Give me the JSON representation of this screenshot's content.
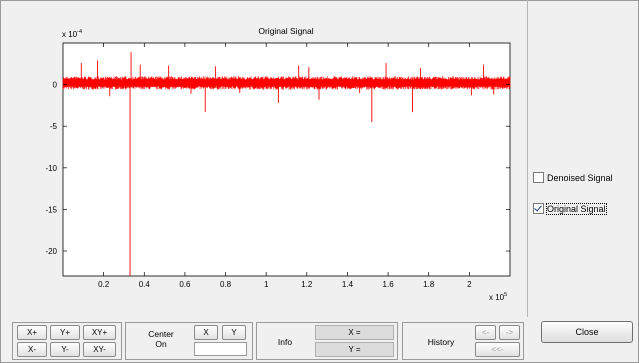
{
  "plot": {
    "title": "Original Signal",
    "y_exponent_base": "x 10",
    "y_exponent_power": "-4",
    "x_exponent_base": "x 10",
    "x_exponent_power": "5",
    "signal_color": "#ff0000"
  },
  "chart_data": {
    "type": "line",
    "title": "Original Signal",
    "xlabel": "",
    "ylabel": "",
    "xlim": [
      0,
      220000
    ],
    "ylim": [
      -23,
      5
    ],
    "x_ticks": [
      20000,
      40000,
      60000,
      80000,
      100000,
      120000,
      140000,
      160000,
      180000,
      200000
    ],
    "x_tick_labels": [
      "0.2",
      "0.4",
      "0.6",
      "0.8",
      "1",
      "1.2",
      "1.4",
      "1.6",
      "1.8",
      "2"
    ],
    "y_ticks": [
      0,
      -5,
      -10,
      -15,
      -20
    ],
    "y_tick_labels": [
      "0",
      "-5",
      "-10",
      "-15",
      "-20"
    ],
    "y_scale_note": "x 10^-4",
    "x_scale_note": "x 10^5",
    "series": [
      {
        "values_description_free": true,
        "baseline": 0.2,
        "noise_band": [
          -0.6,
          1.0
        ],
        "spikes": [
          {
            "x": 9000,
            "y": 2.6
          },
          {
            "x": 17000,
            "y": 2.9
          },
          {
            "x": 23000,
            "y": -1.4
          },
          {
            "x": 33000,
            "y": -23
          },
          {
            "x": 33500,
            "y": 3.9
          },
          {
            "x": 38000,
            "y": 2.4
          },
          {
            "x": 52000,
            "y": 2.3
          },
          {
            "x": 63000,
            "y": -1.1
          },
          {
            "x": 70000,
            "y": -3.3
          },
          {
            "x": 75000,
            "y": 2.2
          },
          {
            "x": 87000,
            "y": -1.0
          },
          {
            "x": 106000,
            "y": -2.2
          },
          {
            "x": 116000,
            "y": 2.3
          },
          {
            "x": 121000,
            "y": 2.1
          },
          {
            "x": 126000,
            "y": -1.8
          },
          {
            "x": 146000,
            "y": -1.0
          },
          {
            "x": 152000,
            "y": -4.5
          },
          {
            "x": 159000,
            "y": 2.6
          },
          {
            "x": 172000,
            "y": -3.3
          },
          {
            "x": 176000,
            "y": 2.0
          },
          {
            "x": 201000,
            "y": -1.3
          },
          {
            "x": 207000,
            "y": 2.4
          },
          {
            "x": 212000,
            "y": -1.2
          }
        ]
      }
    ]
  },
  "legend": {
    "denoised_label": "Denoised Signal",
    "denoised_checked": false,
    "original_label": "Original Signal",
    "original_checked": true
  },
  "zoom": {
    "xplus": "X+",
    "yplus": "Y+",
    "xyplus": "XY+",
    "xminus": "X-",
    "yminus": "Y-",
    "xyminus": "XY-"
  },
  "center": {
    "label_line1": "Center",
    "label_line2": "On",
    "x_btn": "X",
    "y_btn": "Y",
    "value": ""
  },
  "info": {
    "label": "Info",
    "x_readout": "X =",
    "y_readout": "Y ="
  },
  "history": {
    "label": "History",
    "back": "<-",
    "forward": "->",
    "reset": "<<-"
  },
  "close_label": "Close"
}
